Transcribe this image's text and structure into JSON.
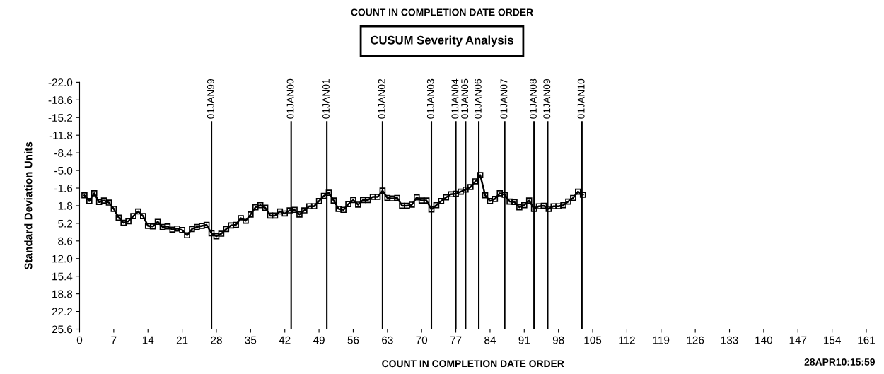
{
  "chart_data": {
    "type": "line",
    "title": "COUNT IN COMPLETION DATE ORDER",
    "subtitle": "CUSUM Severity Analysis",
    "xlabel": "COUNT IN COMPLETION DATE ORDER",
    "ylabel": "Standard Deviation Units",
    "annotations": [
      "28APR10:15:59"
    ],
    "x": [
      1,
      2,
      3,
      4,
      5,
      6,
      7,
      8,
      9,
      10,
      11,
      12,
      13,
      14,
      15,
      16,
      17,
      18,
      19,
      20,
      21,
      22,
      23,
      24,
      25,
      26,
      27,
      28,
      29,
      30,
      31,
      32,
      33,
      34,
      35,
      36,
      37,
      38,
      39,
      40,
      41,
      42,
      43,
      44,
      45,
      46,
      47,
      48,
      49,
      50,
      51,
      52,
      53,
      54,
      55,
      56,
      57,
      58,
      59,
      60,
      61,
      62,
      63,
      64,
      65,
      66,
      67,
      68,
      69,
      70,
      71,
      72,
      73,
      74,
      75,
      76,
      77,
      78,
      79,
      80,
      81,
      82,
      83,
      84,
      85,
      86,
      87,
      88,
      89,
      90,
      91,
      92,
      93,
      94,
      95,
      96,
      97,
      98,
      99,
      100,
      101,
      102,
      103
    ],
    "series": [
      {
        "color": "#000000",
        "values": [
          -0.2,
          0.9,
          -0.6,
          1.1,
          0.8,
          1.2,
          2.4,
          4.1,
          5.1,
          4.8,
          3.8,
          2.9,
          3.8,
          5.7,
          5.8,
          4.9,
          5.9,
          5.8,
          6.4,
          6.2,
          6.5,
          7.5,
          6.3,
          5.9,
          5.7,
          5.5,
          7.1,
          7.7,
          7.2,
          6.3,
          5.6,
          5.5,
          4.2,
          4.7,
          3.5,
          2.1,
          1.7,
          2.2,
          3.7,
          3.7,
          2.9,
          3.3,
          2.7,
          2.6,
          3.5,
          2.7,
          1.9,
          1.9,
          0.9,
          -0.1,
          -0.7,
          0.8,
          2.4,
          2.6,
          1.5,
          0.7,
          1.6,
          0.7,
          0.7,
          0.1,
          0.1,
          -1.1,
          0.3,
          0.4,
          0.3,
          1.8,
          1.8,
          1.6,
          0.2,
          0.8,
          0.8,
          2.5,
          1.7,
          0.9,
          0.2,
          -0.4,
          -0.5,
          -0.9,
          -1.3,
          -1.8,
          -2.9,
          -4.1,
          -0.2,
          0.9,
          0.5,
          -0.6,
          -0.3,
          1.0,
          1.1,
          2.1,
          1.7,
          0.8,
          2.4,
          1.9,
          1.8,
          2.4,
          1.9,
          1.9,
          1.7,
          1.0,
          0.3,
          -0.9,
          -0.3
        ]
      }
    ],
    "xlim": [
      0,
      161
    ],
    "xticks": [
      0,
      7,
      14,
      21,
      28,
      35,
      42,
      49,
      56,
      63,
      70,
      77,
      84,
      91,
      98,
      105,
      112,
      119,
      126,
      133,
      140,
      147,
      154,
      161
    ],
    "ylim": [
      25.6,
      -22.0
    ],
    "yticks": [
      {
        "value": -22.0,
        "label": "-22.0"
      },
      {
        "value": -18.6,
        "label": "-18.6"
      },
      {
        "value": -15.2,
        "label": "-15.2"
      },
      {
        "value": -11.8,
        "label": "-11.8"
      },
      {
        "value": -8.4,
        "label": "-8.4"
      },
      {
        "value": -5.0,
        "label": "-5.0"
      },
      {
        "value": -1.6,
        "label": "-1.6"
      },
      {
        "value": 1.8,
        "label": "1.8"
      },
      {
        "value": 5.2,
        "label": "5.2"
      },
      {
        "value": 8.6,
        "label": "8.6"
      },
      {
        "value": 12.0,
        "label": "12.0"
      },
      {
        "value": 15.4,
        "label": "15.4"
      },
      {
        "value": 18.8,
        "label": "18.8"
      },
      {
        "value": 22.2,
        "label": "22.2"
      },
      {
        "value": 25.6,
        "label": "25.6"
      }
    ],
    "ref_lines": [
      {
        "axis": "x",
        "value": 27,
        "label": "01JAN99",
        "color": "#000000"
      },
      {
        "axis": "x",
        "value": 43.3,
        "label": "01JAN00",
        "color": "#000000"
      },
      {
        "axis": "x",
        "value": 50.6,
        "label": "01JAN01",
        "color": "#000000"
      },
      {
        "axis": "x",
        "value": 62,
        "label": "01JAN02",
        "color": "#000000"
      },
      {
        "axis": "x",
        "value": 72,
        "label": "01JAN03",
        "color": "#000000"
      },
      {
        "axis": "x",
        "value": 77,
        "label": "01JAN04",
        "color": "#000000"
      },
      {
        "axis": "x",
        "value": 79,
        "label": "01JAN05",
        "color": "#000000"
      },
      {
        "axis": "x",
        "value": 81.7,
        "label": "01JAN06",
        "color": "#000000"
      },
      {
        "axis": "x",
        "value": 87,
        "label": "01JAN07",
        "color": "#000000"
      },
      {
        "axis": "x",
        "value": 93,
        "label": "01JAN08",
        "color": "#000000"
      },
      {
        "axis": "x",
        "value": 95.8,
        "label": "01JAN09",
        "color": "#000000"
      },
      {
        "axis": "x",
        "value": 102.8,
        "label": "01JAN10",
        "color": "#000000"
      }
    ],
    "marker": "square",
    "line_style": "solid",
    "grid": false,
    "legend": false
  }
}
